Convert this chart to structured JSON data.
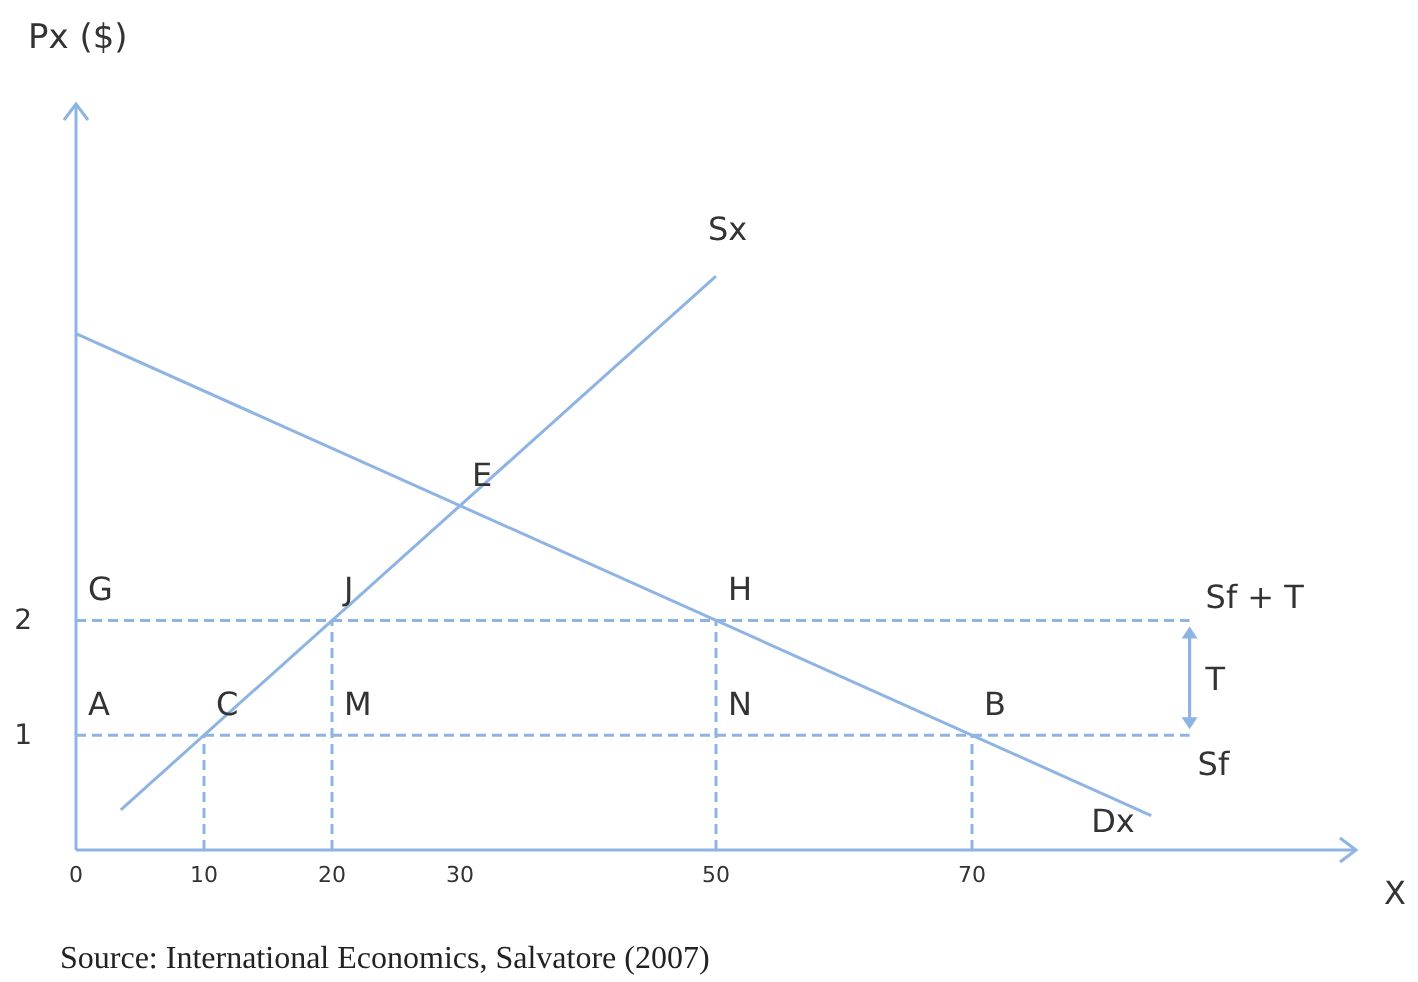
{
  "chart_data": {
    "type": "line",
    "xlabel": "X",
    "ylabel": "Px ($)",
    "xlim": [
      0,
      100
    ],
    "ylim": [
      0,
      6.5
    ],
    "xticks": [
      0,
      10,
      20,
      30,
      50,
      70
    ],
    "yticks": [
      1,
      2
    ],
    "grid": false,
    "legend": false,
    "marker": "none",
    "series": [
      {
        "name": "Dx",
        "color": "#8eb4e3",
        "x": [
          0,
          84
        ],
        "values": [
          4.5,
          0.3
        ],
        "line_style": "solid"
      },
      {
        "name": "Sx",
        "color": "#8eb4e3",
        "x": [
          3.5,
          50
        ],
        "values": [
          0.35,
          5
        ],
        "line_style": "solid"
      },
      {
        "name": "Sf + T",
        "color": "#8eb4e3",
        "x": [
          0,
          87
        ],
        "values": [
          2,
          2
        ],
        "line_style": "dashed"
      },
      {
        "name": "Sf",
        "color": "#8eb4e3",
        "x": [
          0,
          87
        ],
        "values": [
          1,
          1
        ],
        "line_style": "dashed"
      },
      {
        "color": "#8eb4e3",
        "x": [
          10,
          10
        ],
        "values": [
          0,
          1
        ],
        "line_style": "dashed"
      },
      {
        "color": "#8eb4e3",
        "x": [
          20,
          20
        ],
        "values": [
          0,
          2
        ],
        "line_style": "dashed"
      },
      {
        "color": "#8eb4e3",
        "x": [
          50,
          50
        ],
        "values": [
          0,
          2
        ],
        "line_style": "dashed"
      },
      {
        "color": "#8eb4e3",
        "x": [
          70,
          70
        ],
        "values": [
          0,
          1
        ],
        "line_style": "dashed"
      }
    ],
    "annotations": [
      {
        "text": "G",
        "x": 0,
        "y": 2
      },
      {
        "text": "A",
        "x": 0,
        "y": 1
      },
      {
        "text": "C",
        "x": 10,
        "y": 1
      },
      {
        "text": "M",
        "x": 20,
        "y": 1
      },
      {
        "text": "N",
        "x": 50,
        "y": 1
      },
      {
        "text": "B",
        "x": 70,
        "y": 1
      },
      {
        "text": "J",
        "x": 20,
        "y": 2
      },
      {
        "text": "H",
        "x": 50,
        "y": 2
      },
      {
        "text": "E",
        "x": 30,
        "y": 3
      },
      "T",
      "Source: International Economics, Salvatore (2007)"
    ]
  }
}
